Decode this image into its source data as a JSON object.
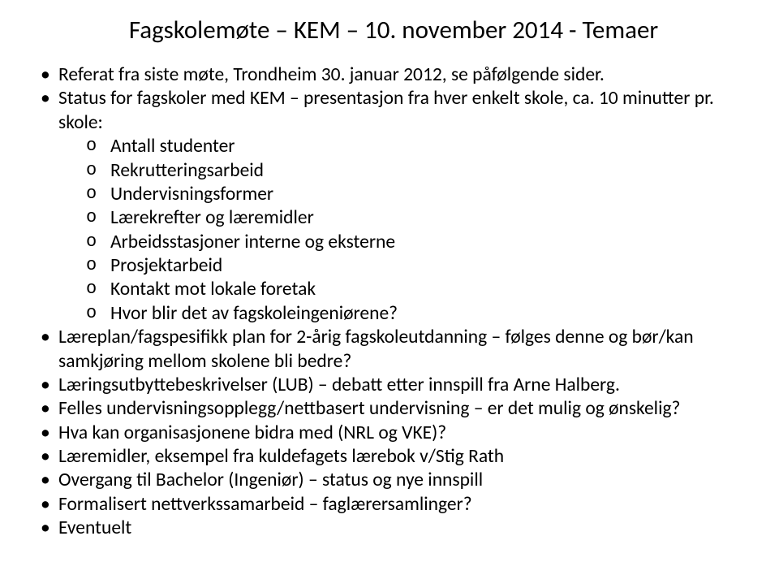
{
  "title": "Fagskolemøte – KEM – 10. november 2014    -   Temaer",
  "bullets": [
    {
      "text": "Referat fra siste møte, Trondheim 30. januar 2012, se påfølgende sider."
    },
    {
      "text": "Status for fagskoler med KEM – presentasjon fra hver enkelt skole, ca. 10 minutter pr. skole:",
      "sub": [
        "Antall studenter",
        "Rekrutteringsarbeid",
        "Undervisningsformer",
        "Lærekrefter og læremidler",
        "Arbeidsstasjoner interne og eksterne",
        "Prosjektarbeid",
        "Kontakt mot lokale foretak",
        "Hvor blir det av fagskoleingeniørene?"
      ]
    },
    {
      "text": "Læreplan/fagspesifikk plan for 2-årig fagskoleutdanning – følges denne og bør/kan samkjøring mellom skolene bli bedre?"
    },
    {
      "text": "Læringsutbyttebeskrivelser (LUB) – debatt etter innspill fra Arne Halberg."
    },
    {
      "text": "Felles undervisningsopplegg/nettbasert undervisning – er det mulig og ønskelig?"
    },
    {
      "text": "Hva kan organisasjonene bidra med (NRL og VKE)?"
    },
    {
      "text": "Læremidler, eksempel fra kuldefagets lærebok v/Stig Rath"
    },
    {
      "text": "Overgang til Bachelor (Ingeniør) – status og nye innspill"
    },
    {
      "text": "Formalisert nettverkssamarbeid – faglærersamlinger?"
    },
    {
      "text": "Eventuelt"
    }
  ]
}
